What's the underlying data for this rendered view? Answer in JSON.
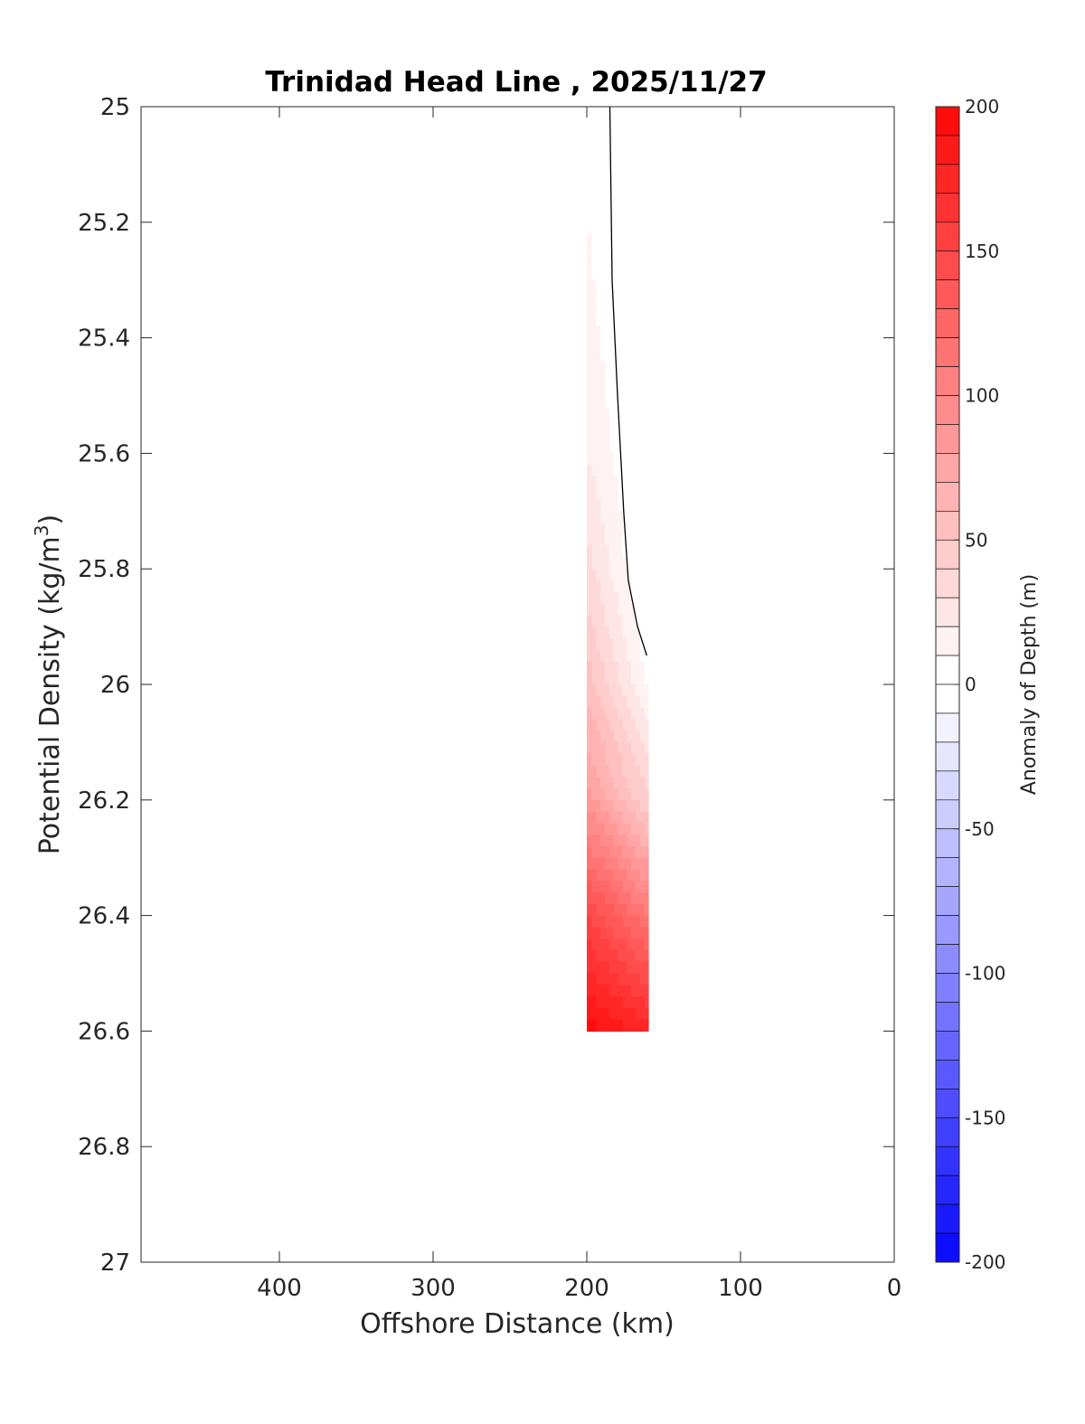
{
  "chart_data": {
    "type": "heatmap",
    "title": "Trinidad Head Line , 2025/11/27",
    "xlabel": "Offshore Distance (km)",
    "ylabel_main": "Potential Density (kg/m",
    "ylabel_sup": "3",
    "ylabel_close": ")",
    "xlim": [
      490,
      0
    ],
    "ylim": [
      25,
      27
    ],
    "x_reversed": true,
    "y_reversed": true,
    "x_ticks": [
      400,
      300,
      200,
      100,
      0
    ],
    "x_tick_labels": [
      "400",
      "300",
      "200",
      "100",
      "0"
    ],
    "y_ticks": [
      25,
      25.2,
      25.4,
      25.6,
      25.8,
      26,
      26.2,
      26.4,
      26.6,
      26.8,
      27
    ],
    "y_tick_labels": [
      "25",
      "25.2",
      "25.4",
      "25.6",
      "25.8",
      "26",
      "26.2",
      "26.4",
      "26.6",
      "26.8",
      "27"
    ],
    "grid": false,
    "data_extent": {
      "x": [
        160,
        200
      ],
      "y": [
        25,
        26.6
      ]
    },
    "anomaly_profile": [
      {
        "density": 25.0,
        "west": 8,
        "east": -6
      },
      {
        "density": 25.2,
        "west": 10,
        "east": -6
      },
      {
        "density": 25.4,
        "west": 14,
        "east": -6
      },
      {
        "density": 25.6,
        "west": 20,
        "east": -6
      },
      {
        "density": 25.8,
        "west": 34,
        "east": -4
      },
      {
        "density": 26.0,
        "west": 55,
        "east": 8
      },
      {
        "density": 26.2,
        "west": 85,
        "east": 40
      },
      {
        "density": 26.4,
        "west": 150,
        "east": 110
      },
      {
        "density": 26.6,
        "west": 195,
        "east": 175
      }
    ],
    "zero_contour": [
      {
        "x": 185,
        "y": 25.0
      },
      {
        "x": 183.5,
        "y": 25.3
      },
      {
        "x": 180,
        "y": 25.5
      },
      {
        "x": 176,
        "y": 25.7
      },
      {
        "x": 173,
        "y": 25.82
      },
      {
        "x": 167,
        "y": 25.9
      },
      {
        "x": 161,
        "y": 25.95
      }
    ],
    "colorbar": {
      "label": "Anomaly of Depth (m)",
      "range": [
        -200,
        200
      ],
      "ticks": [
        200,
        150,
        100,
        50,
        0,
        -50,
        -100,
        -150,
        -200
      ],
      "tick_labels": [
        "200",
        "150",
        "100",
        "50",
        "0",
        "-50",
        "-100",
        "-150",
        "-200"
      ],
      "step": 10,
      "positive_color": "#ff0000",
      "negative_color": "#0000ff",
      "neutral_color": "#ffffff"
    }
  }
}
